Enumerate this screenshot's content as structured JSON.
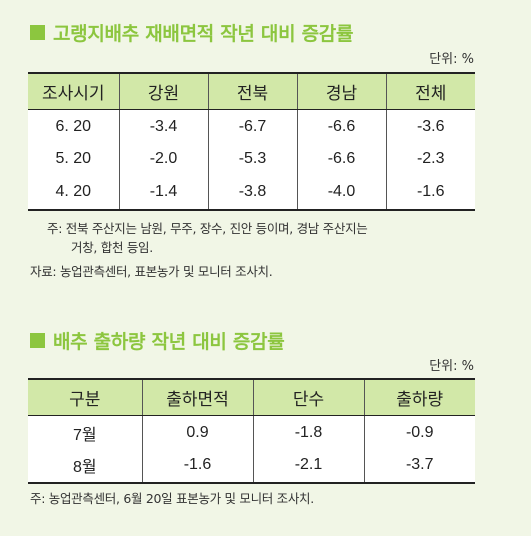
{
  "section1": {
    "title": "고랭지배추 재배면적 작년 대비 증감률",
    "unit": "단위: %",
    "headers": [
      "조사시기",
      "강원",
      "전북",
      "경남",
      "전체"
    ],
    "rows": [
      [
        "6. 20",
        "-3.4",
        "-6.7",
        "-6.6",
        "-3.6"
      ],
      [
        "5. 20",
        "-2.0",
        "-5.3",
        "-6.6",
        "-2.3"
      ],
      [
        "4. 20",
        "-1.4",
        "-3.8",
        "-4.0",
        "-1.6"
      ]
    ],
    "note_line1": "주: 전북 주산지는 남원, 무주, 장수, 진안 등이며, 경남 주산지는",
    "note_line2": "거창, 합천 등임.",
    "source": "자료: 농업관측센터, 표본농가 및 모니터 조사치."
  },
  "section2": {
    "title": "배추 출하량 작년 대비 증감률",
    "unit": "단위: %",
    "headers": [
      "구분",
      "출하면적",
      "단수",
      "출하량"
    ],
    "rows": [
      [
        "7월",
        "0.9",
        "-1.8",
        "-0.9"
      ],
      [
        "8월",
        "-1.6",
        "-2.1",
        "-3.7"
      ]
    ],
    "note": "주: 농업관측센터, 6월 20일 표본농가 및 모니터 조사치."
  },
  "colors": {
    "accent": "#8cc63f",
    "header_bg": "#d2e8a8",
    "page_bg": "#f1f6e6"
  }
}
